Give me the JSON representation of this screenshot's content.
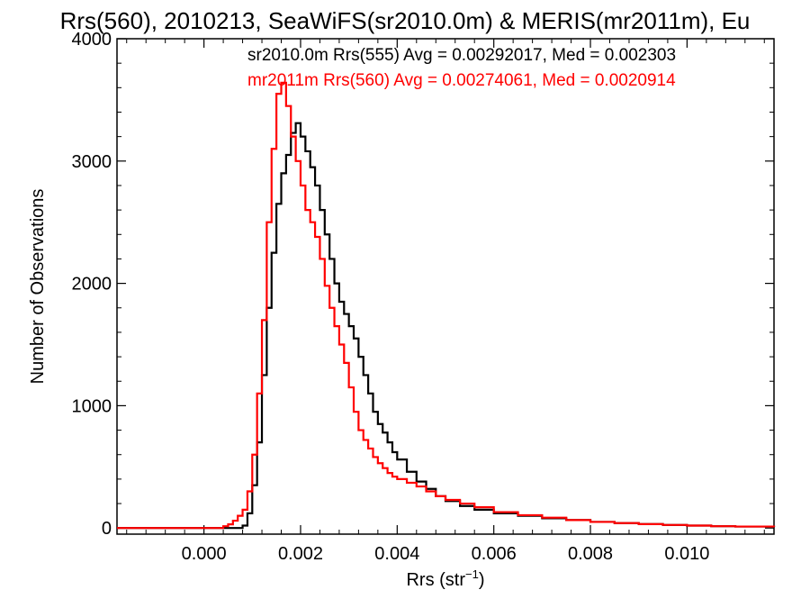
{
  "chart_data": {
    "type": "line",
    "title": "Rrs(560), 2010213, SeaWiFS(sr2010.0m) & MERIS(mr2011m), Eu",
    "xlabel": "Rrs (str",
    "xlabel_sup": "−1",
    "xlabel_close": ")",
    "ylabel": "Number of Observations",
    "xlim": [
      -0.0018,
      0.0118
    ],
    "ylim": [
      -50,
      4000
    ],
    "x_ticks": [
      0.0,
      0.002,
      0.004,
      0.006,
      0.008,
      0.01
    ],
    "x_tick_labels": [
      "0.000",
      "0.002",
      "0.004",
      "0.006",
      "0.008",
      "0.010"
    ],
    "y_ticks": [
      0,
      1000,
      2000,
      3000,
      4000
    ],
    "y_tick_labels": [
      "0",
      "1000",
      "2000",
      "3000",
      "4000"
    ],
    "grid": false,
    "annotations": [
      {
        "text": "sr2010.0m Rrs(555) Avg = 0.00292017, Med = 0.002303",
        "color": "#000000"
      },
      {
        "text": "mr2011m Rrs(560) Avg = 0.00274061, Med = 0.0020914",
        "color": "#ff0000"
      }
    ],
    "series": [
      {
        "color": "#000000",
        "style": "step",
        "points": [
          [
            -0.0018,
            0
          ],
          [
            0.0007,
            0
          ],
          [
            0.0008,
            20
          ],
          [
            0.0009,
            120
          ],
          [
            0.001,
            350
          ],
          [
            0.0011,
            700
          ],
          [
            0.0012,
            1250
          ],
          [
            0.0013,
            1800
          ],
          [
            0.0014,
            2250
          ],
          [
            0.0015,
            2650
          ],
          [
            0.0016,
            2900
          ],
          [
            0.0017,
            3050
          ],
          [
            0.0018,
            3230
          ],
          [
            0.0019,
            3310
          ],
          [
            0.002,
            3200
          ],
          [
            0.0021,
            3080
          ],
          [
            0.0022,
            2950
          ],
          [
            0.0023,
            2800
          ],
          [
            0.0024,
            2600
          ],
          [
            0.0025,
            2400
          ],
          [
            0.0026,
            2200
          ],
          [
            0.0027,
            2000
          ],
          [
            0.0028,
            1850
          ],
          [
            0.0029,
            1750
          ],
          [
            0.003,
            1650
          ],
          [
            0.0031,
            1550
          ],
          [
            0.0032,
            1400
          ],
          [
            0.0033,
            1250
          ],
          [
            0.0034,
            1100
          ],
          [
            0.0035,
            950
          ],
          [
            0.0036,
            850
          ],
          [
            0.0037,
            780
          ],
          [
            0.0038,
            700
          ],
          [
            0.0039,
            620
          ],
          [
            0.004,
            560
          ],
          [
            0.0042,
            460
          ],
          [
            0.0044,
            380
          ],
          [
            0.0046,
            320
          ],
          [
            0.0048,
            260
          ],
          [
            0.005,
            220
          ],
          [
            0.0053,
            180
          ],
          [
            0.0056,
            150
          ],
          [
            0.006,
            120
          ],
          [
            0.0065,
            100
          ],
          [
            0.007,
            80
          ],
          [
            0.0075,
            65
          ],
          [
            0.008,
            50
          ],
          [
            0.0085,
            40
          ],
          [
            0.009,
            32
          ],
          [
            0.0095,
            25
          ],
          [
            0.01,
            20
          ],
          [
            0.0105,
            15
          ],
          [
            0.011,
            12
          ],
          [
            0.0118,
            8
          ]
        ]
      },
      {
        "color": "#ff0000",
        "style": "step",
        "points": [
          [
            -0.0018,
            0
          ],
          [
            0.0003,
            0
          ],
          [
            0.0004,
            15
          ],
          [
            0.0005,
            30
          ],
          [
            0.0006,
            60
          ],
          [
            0.0007,
            100
          ],
          [
            0.0008,
            150
          ],
          [
            0.0009,
            300
          ],
          [
            0.001,
            600
          ],
          [
            0.0011,
            1100
          ],
          [
            0.0012,
            1700
          ],
          [
            0.0013,
            2500
          ],
          [
            0.0014,
            3100
          ],
          [
            0.0015,
            3550
          ],
          [
            0.0016,
            3640
          ],
          [
            0.0017,
            3450
          ],
          [
            0.0018,
            3200
          ],
          [
            0.0019,
            3000
          ],
          [
            0.002,
            2800
          ],
          [
            0.0021,
            2600
          ],
          [
            0.0022,
            2500
          ],
          [
            0.0023,
            2380
          ],
          [
            0.0024,
            2200
          ],
          [
            0.0025,
            1980
          ],
          [
            0.0026,
            1800
          ],
          [
            0.0027,
            1650
          ],
          [
            0.0028,
            1500
          ],
          [
            0.0029,
            1350
          ],
          [
            0.003,
            1150
          ],
          [
            0.0031,
            950
          ],
          [
            0.0032,
            800
          ],
          [
            0.0033,
            720
          ],
          [
            0.0034,
            650
          ],
          [
            0.0035,
            580
          ],
          [
            0.0036,
            530
          ],
          [
            0.0037,
            490
          ],
          [
            0.0038,
            450
          ],
          [
            0.0039,
            420
          ],
          [
            0.004,
            400
          ],
          [
            0.0042,
            370
          ],
          [
            0.0044,
            340
          ],
          [
            0.0046,
            300
          ],
          [
            0.0048,
            260
          ],
          [
            0.005,
            230
          ],
          [
            0.0053,
            200
          ],
          [
            0.0056,
            170
          ],
          [
            0.006,
            130
          ],
          [
            0.0065,
            105
          ],
          [
            0.007,
            85
          ],
          [
            0.0075,
            65
          ],
          [
            0.008,
            50
          ],
          [
            0.0085,
            40
          ],
          [
            0.009,
            32
          ],
          [
            0.0095,
            25
          ],
          [
            0.01,
            20
          ],
          [
            0.0105,
            15
          ],
          [
            0.011,
            12
          ],
          [
            0.0118,
            8
          ]
        ]
      }
    ]
  }
}
